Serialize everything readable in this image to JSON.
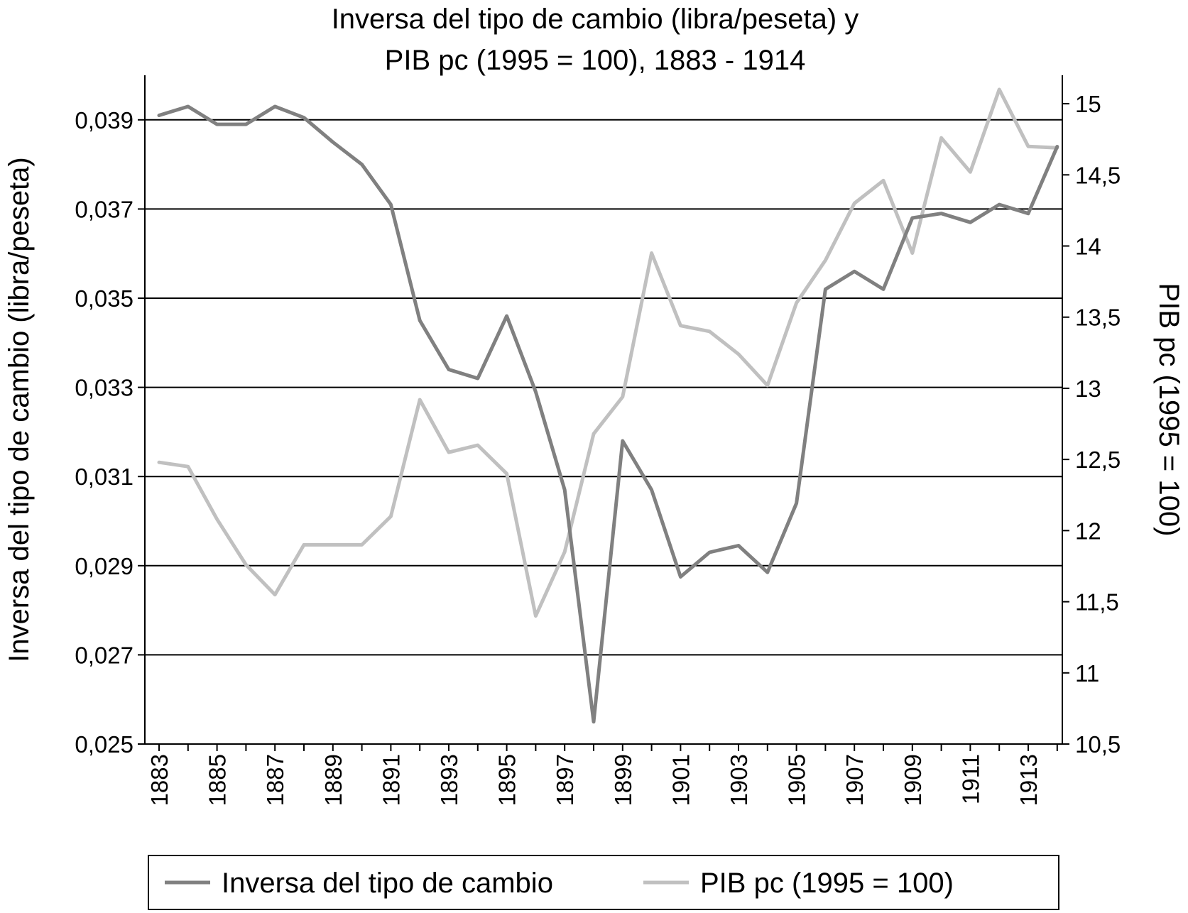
{
  "chart_data": {
    "type": "line",
    "title_lines": [
      "Inversa del tipo de cambio (libra/peseta) y",
      "PIB pc (1995 = 100), 1883 - 1914"
    ],
    "y_left_label": "Inversa del tipo de cambio (libra/peseta)",
    "y_right_label": "PIB pc (1995 = 100)",
    "x": [
      1883,
      1884,
      1885,
      1886,
      1887,
      1888,
      1889,
      1890,
      1891,
      1892,
      1893,
      1894,
      1895,
      1896,
      1897,
      1898,
      1899,
      1900,
      1901,
      1902,
      1903,
      1904,
      1905,
      1906,
      1907,
      1908,
      1909,
      1910,
      1911,
      1912,
      1913,
      1914
    ],
    "x_tick_labels": [
      "1883",
      "1885",
      "1887",
      "1889",
      "1891",
      "1893",
      "1895",
      "1897",
      "1899",
      "1901",
      "1903",
      "1905",
      "1907",
      "1909",
      "1911",
      "1913"
    ],
    "y_left_ticks": [
      "0,025",
      "0,027",
      "0,029",
      "0,031",
      "0,033",
      "0,035",
      "0,037",
      "0,039"
    ],
    "y_right_ticks": [
      "10,5",
      "11",
      "11,5",
      "12",
      "12,5",
      "13",
      "13,5",
      "14",
      "14,5",
      "15"
    ],
    "y_left_lim": [
      0.025,
      0.04
    ],
    "y_right_lim": [
      10.5,
      15.2
    ],
    "grid": "horizontal",
    "legend_position": "bottom",
    "series": [
      {
        "name": "Inversa del tipo de cambio",
        "axis": "left",
        "color": "#808080",
        "values": [
          0.0391,
          0.0393,
          0.0389,
          0.0389,
          0.0393,
          0.03905,
          0.0385,
          0.038,
          0.0371,
          0.0345,
          0.0334,
          0.0332,
          0.0346,
          0.0329,
          0.0307,
          0.0255,
          0.0318,
          0.0307,
          0.02875,
          0.0293,
          0.02945,
          0.02885,
          0.0304,
          0.0352,
          0.0356,
          0.0352,
          0.0368,
          0.0369,
          0.0367,
          0.0371,
          0.0369,
          0.0384
        ]
      },
      {
        "name": "PIB pc (1995 = 100)",
        "axis": "right",
        "color": "#c0c0c0",
        "values": [
          12.48,
          12.45,
          12.08,
          11.76,
          11.55,
          11.9,
          11.9,
          11.9,
          12.1,
          12.92,
          12.55,
          12.6,
          12.4,
          11.4,
          11.85,
          12.68,
          12.94,
          13.95,
          13.44,
          13.4,
          13.24,
          13.02,
          13.6,
          13.9,
          14.3,
          14.46,
          13.95,
          14.76,
          14.52,
          15.1,
          14.7,
          14.69
        ]
      }
    ]
  }
}
